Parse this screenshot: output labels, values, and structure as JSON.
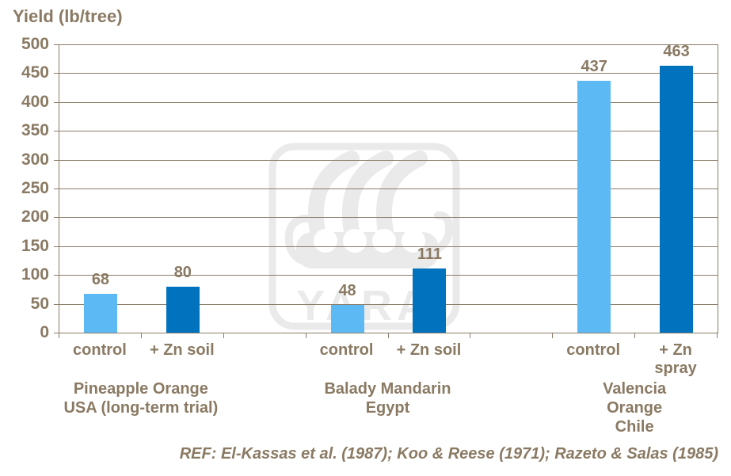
{
  "colors": {
    "text_brown": "#8a7a63",
    "grid_line": "#8c7c68",
    "bar_control": "#5db9f3",
    "bar_treated": "#0072be",
    "watermark_gray": "#eaeaea",
    "background": "#ffffff"
  },
  "watermark": {
    "name": "yara-logo",
    "text": "YARA"
  },
  "chart_data": {
    "type": "bar",
    "title": "Yield (lb/tree)",
    "xlabel": "",
    "ylabel": "Yield (lb/tree)",
    "ylim": [
      0,
      500
    ],
    "ytick_step": 50,
    "yticks": [
      0,
      50,
      100,
      150,
      200,
      250,
      300,
      350,
      400,
      450,
      500
    ],
    "grid": true,
    "legend": "none",
    "series_colors": {
      "control": "#5db9f3",
      "treated": "#0072be"
    },
    "groups": [
      {
        "label": "Pineapple Orange\nUSA (long-term trial)",
        "bars": [
          {
            "category": "control",
            "value": 68,
            "series": "control"
          },
          {
            "category": "+ Zn soil",
            "value": 80,
            "series": "treated"
          }
        ]
      },
      {
        "label": "Balady Mandarin\nEgypt",
        "bars": [
          {
            "category": "control",
            "value": 48,
            "series": "control"
          },
          {
            "category": "+ Zn soil",
            "value": 111,
            "series": "treated"
          }
        ]
      },
      {
        "label": "Valencia Orange\nChile",
        "bars": [
          {
            "category": "control",
            "value": 437,
            "series": "control"
          },
          {
            "category": "+ Zn\nspray",
            "value": 463,
            "series": "treated"
          }
        ]
      }
    ],
    "footnote": "REF: El-Kassas et al. (1987); Koo & Reese (1971); Razeto & Salas (1985)"
  }
}
